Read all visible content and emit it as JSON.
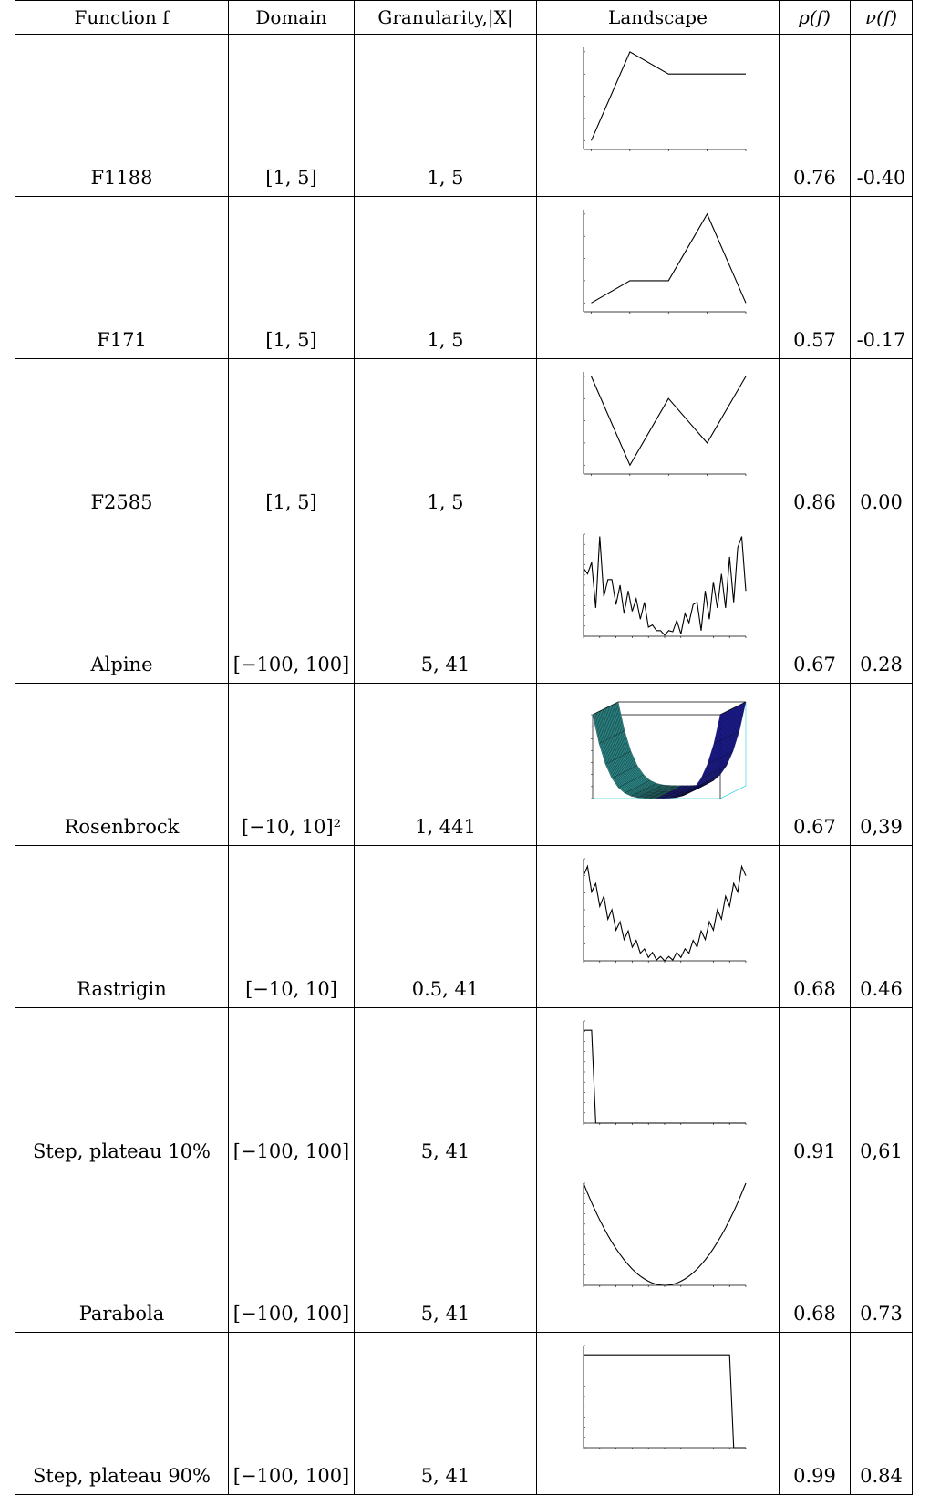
{
  "headers": {
    "function": "Function f",
    "domain": "Domain",
    "granularity": "Granularity,|X|",
    "landscape": "Landscape",
    "rho": "ρ(f)",
    "nu": "ν(f)"
  },
  "rows": [
    {
      "function": "F1188",
      "domain": "[1, 5]",
      "granularity": "1, 5",
      "rho": "0.76",
      "nu": "-0.40"
    },
    {
      "function": "F171",
      "domain": "[1, 5]",
      "granularity": "1, 5",
      "rho": "0.57",
      "nu": "-0.17"
    },
    {
      "function": "F2585",
      "domain": "[1, 5]",
      "granularity": "1, 5",
      "rho": "0.86",
      "nu": "0.00"
    },
    {
      "function": "Alpine",
      "domain": "[−100, 100]",
      "granularity": "5, 41",
      "rho": "0.67",
      "nu": "0.28"
    },
    {
      "function": "Rosenbrock",
      "domain": "[−10, 10]²",
      "granularity": "1, 441",
      "rho": "0.67",
      "nu": "0,39"
    },
    {
      "function": "Rastrigin",
      "domain": "[−10, 10]",
      "granularity": "0.5, 41",
      "rho": "0.68",
      "nu": "0.46"
    },
    {
      "function": "Step, plateau 10%",
      "domain": "[−100, 100]",
      "granularity": "5, 41",
      "rho": "0.91",
      "nu": "0,61"
    },
    {
      "function": "Parabola",
      "domain": "[−100, 100]",
      "granularity": "5, 41",
      "rho": "0.68",
      "nu": "0.73"
    },
    {
      "function": "Step, plateau 90%",
      "domain": "[−100, 100]",
      "granularity": "5, 41",
      "rho": "0.99",
      "nu": "0.84"
    }
  ],
  "chart_data": [
    {
      "type": "line",
      "x": [
        1,
        2,
        3,
        4,
        5
      ],
      "y": [
        1,
        5,
        4,
        4,
        4
      ],
      "ylim": [
        0.6,
        5.2
      ],
      "xlim": [
        0.8,
        5
      ]
    },
    {
      "type": "line",
      "x": [
        1,
        2,
        3,
        4,
        5
      ],
      "y": [
        1,
        2,
        2,
        5,
        1
      ],
      "ylim": [
        0.6,
        5.2
      ],
      "xlim": [
        0.8,
        5
      ]
    },
    {
      "type": "line",
      "x": [
        1,
        2,
        3,
        4,
        5
      ],
      "y": [
        5,
        1,
        4,
        2,
        5
      ],
      "ylim": [
        0.6,
        5.2
      ],
      "xlim": [
        0.8,
        5
      ]
    },
    {
      "type": "line",
      "xlim": [
        -100,
        100
      ],
      "ylim": [
        0,
        90
      ],
      "x": [
        -100,
        -95,
        -90,
        -85,
        -80,
        -75,
        -70,
        -65,
        -60,
        -55,
        -50,
        -45,
        -40,
        -35,
        -30,
        -25,
        -20,
        -15,
        -10,
        -5,
        0,
        5,
        10,
        15,
        20,
        25,
        30,
        35,
        40,
        45,
        50,
        55,
        60,
        65,
        70,
        75,
        80,
        85,
        90,
        95,
        100
      ],
      "y": [
        60,
        55,
        65,
        25,
        88,
        35,
        50,
        50,
        28,
        45,
        20,
        40,
        22,
        33,
        15,
        30,
        8,
        10,
        5,
        5,
        1,
        5,
        4,
        14,
        2,
        20,
        12,
        28,
        30,
        5,
        40,
        15,
        48,
        25,
        55,
        25,
        70,
        30,
        78,
        88,
        40
      ]
    },
    {
      "type": "surface",
      "xlim": [
        -10,
        10
      ],
      "ylim": [
        -10,
        10
      ],
      "zlim": [
        0,
        1400000.0
      ],
      "grid": 21
    },
    {
      "type": "line",
      "xlim": [
        -10,
        10
      ],
      "ylim": [
        0,
        120
      ],
      "x": [
        -10,
        -9.5,
        -9,
        -8.5,
        -8,
        -7.5,
        -7,
        -6.5,
        -6,
        -5.5,
        -5,
        -4.5,
        -4,
        -3.5,
        -3,
        -2.5,
        -2,
        -1.5,
        -1,
        -0.5,
        0,
        0.5,
        1,
        1.5,
        2,
        2.5,
        3,
        3.5,
        4,
        4.5,
        5,
        5.5,
        6,
        6.5,
        7,
        7.5,
        8,
        8.5,
        9,
        9.5,
        10
      ],
      "y": [
        100,
        111,
        81,
        91,
        64,
        76,
        49,
        60,
        36,
        46,
        25,
        35,
        16,
        24,
        9,
        14,
        4,
        10,
        1,
        5,
        0,
        5,
        1,
        10,
        4,
        14,
        9,
        24,
        16,
        35,
        25,
        46,
        36,
        60,
        49,
        76,
        64,
        91,
        81,
        111,
        100
      ]
    },
    {
      "type": "line",
      "xlim": [
        -100,
        100
      ],
      "ylim": [
        0,
        1.1
      ],
      "x": [
        -100,
        -95,
        -90,
        -85,
        100
      ],
      "y": [
        1,
        1,
        1,
        0,
        0
      ]
    },
    {
      "type": "line",
      "xlim": [
        -100,
        100
      ],
      "ylim": [
        0,
        10000
      ],
      "x": [
        -100,
        -95,
        -90,
        -85,
        -80,
        -75,
        -70,
        -65,
        -60,
        -55,
        -50,
        -45,
        -40,
        -35,
        -30,
        -25,
        -20,
        -15,
        -10,
        -5,
        0,
        5,
        10,
        15,
        20,
        25,
        30,
        35,
        40,
        45,
        50,
        55,
        60,
        65,
        70,
        75,
        80,
        85,
        90,
        95,
        100
      ],
      "y": [
        10000,
        9025,
        8100,
        7225,
        6400,
        5625,
        4900,
        4225,
        3600,
        3025,
        2500,
        2025,
        1600,
        1225,
        900,
        625,
        400,
        225,
        100,
        25,
        0,
        25,
        100,
        225,
        400,
        625,
        900,
        1225,
        1600,
        2025,
        2500,
        3025,
        3600,
        4225,
        4900,
        5625,
        6400,
        7225,
        8100,
        9025,
        10000
      ]
    },
    {
      "type": "line",
      "xlim": [
        -100,
        100
      ],
      "ylim": [
        0,
        1.1
      ],
      "x": [
        -100,
        -95,
        80,
        85,
        100
      ],
      "y": [
        1,
        1,
        1,
        0,
        0
      ]
    }
  ]
}
